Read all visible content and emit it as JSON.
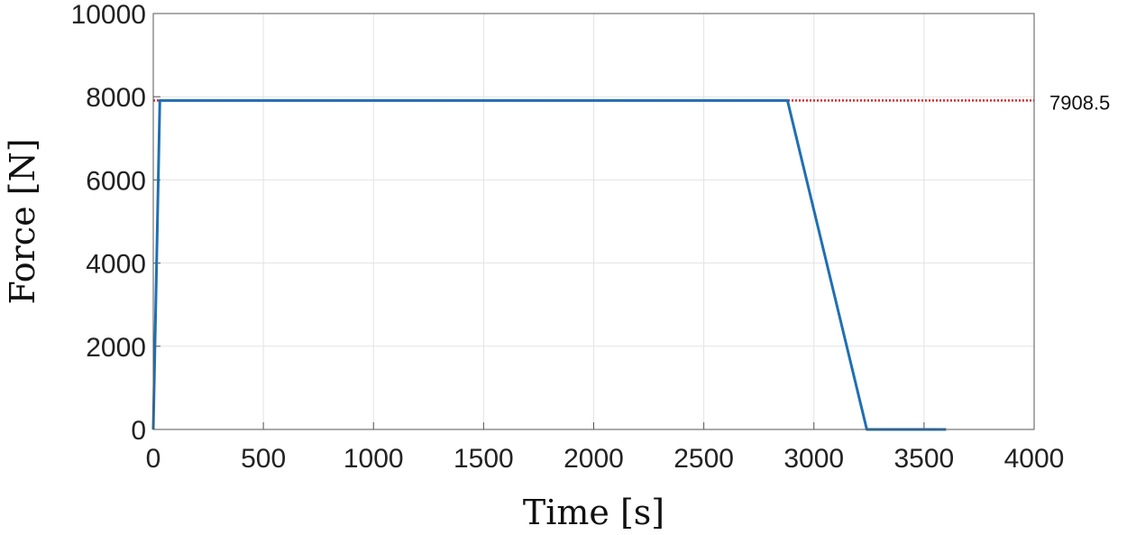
{
  "chart_data": {
    "type": "line",
    "xlabel": "Time [s]",
    "ylabel": "Force [N]",
    "xlim": [
      0,
      4000
    ],
    "ylim": [
      0,
      10000
    ],
    "x_ticks": [
      0,
      500,
      1000,
      1500,
      2000,
      2500,
      3000,
      3500,
      4000
    ],
    "y_ticks": [
      0,
      2000,
      4000,
      6000,
      8000,
      10000
    ],
    "grid": true,
    "series": [
      {
        "color": "#1f6fb2",
        "x": [
          0,
          30,
          2880,
          3240,
          3600
        ],
        "y": [
          0,
          7908.5,
          7908.5,
          0,
          0
        ]
      }
    ],
    "reference_line": {
      "y": 7908.5,
      "label": "7908.5",
      "color": "#d62728",
      "style": "dotted"
    }
  }
}
